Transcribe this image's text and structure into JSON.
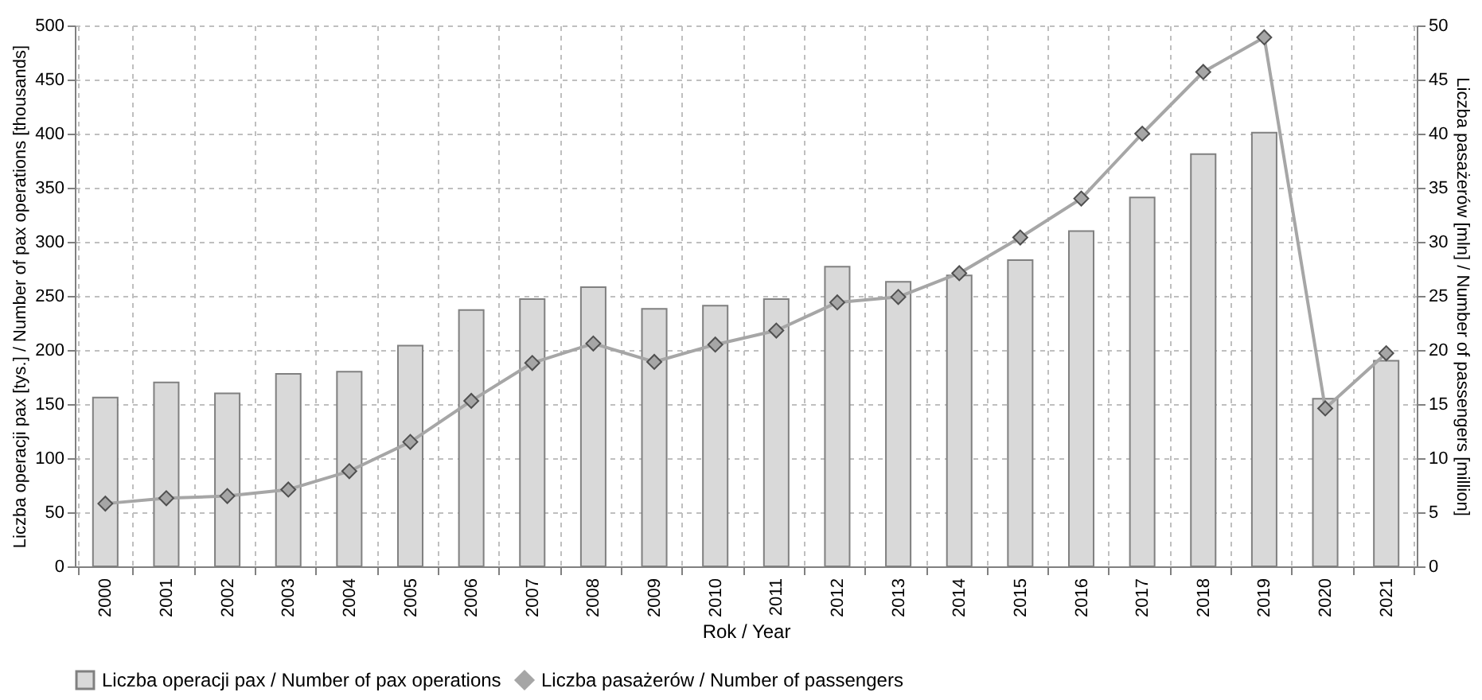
{
  "chart_data": {
    "type": "bar",
    "xlabel": "Rok / Year",
    "ylabel": "Liczba operacji pax [tys.] / Number of pax operations [thousands]",
    "y2label": "Liczba pasażerów [mln] / Number of passengers [million]",
    "categories": [
      "2000",
      "2001",
      "2002",
      "2003",
      "2004",
      "2005",
      "2006",
      "2007",
      "2008",
      "2009",
      "2010",
      "2011",
      "2012",
      "2013",
      "2014",
      "2015",
      "2016",
      "2017",
      "2018",
      "2019",
      "2020",
      "2021"
    ],
    "series": [
      {
        "name": "Liczba operacji pax / Number of pax operations",
        "color": "#d9d9d9",
        "values": [
          156,
          170,
          160,
          178,
          180,
          204,
          237,
          247,
          258,
          238,
          241,
          247,
          277,
          263,
          269,
          283,
          310,
          341,
          381,
          401,
          155,
          190
        ]
      },
      {
        "name": "Liczba pasażerów / Number of passengers",
        "type": "line",
        "axis": "y2",
        "color": "#a6a6a6",
        "marker": "diamond",
        "line_style": "solid",
        "values": [
          5.8,
          6.3,
          6.5,
          7.1,
          8.8,
          11.5,
          15.3,
          18.8,
          20.6,
          18.9,
          20.5,
          21.8,
          24.4,
          24.9,
          27.1,
          30.4,
          34.0,
          40.0,
          45.7,
          48.9,
          14.6,
          19.7
        ]
      }
    ],
    "ylim": [
      0,
      500
    ],
    "yticks": [
      0,
      50,
      100,
      150,
      200,
      250,
      300,
      350,
      400,
      450,
      500
    ],
    "y2lim": [
      0,
      50
    ],
    "y2ticks": [
      0,
      5,
      10,
      15,
      20,
      25,
      30,
      35,
      40,
      45,
      50
    ],
    "grid": true,
    "legend": "bottom"
  }
}
